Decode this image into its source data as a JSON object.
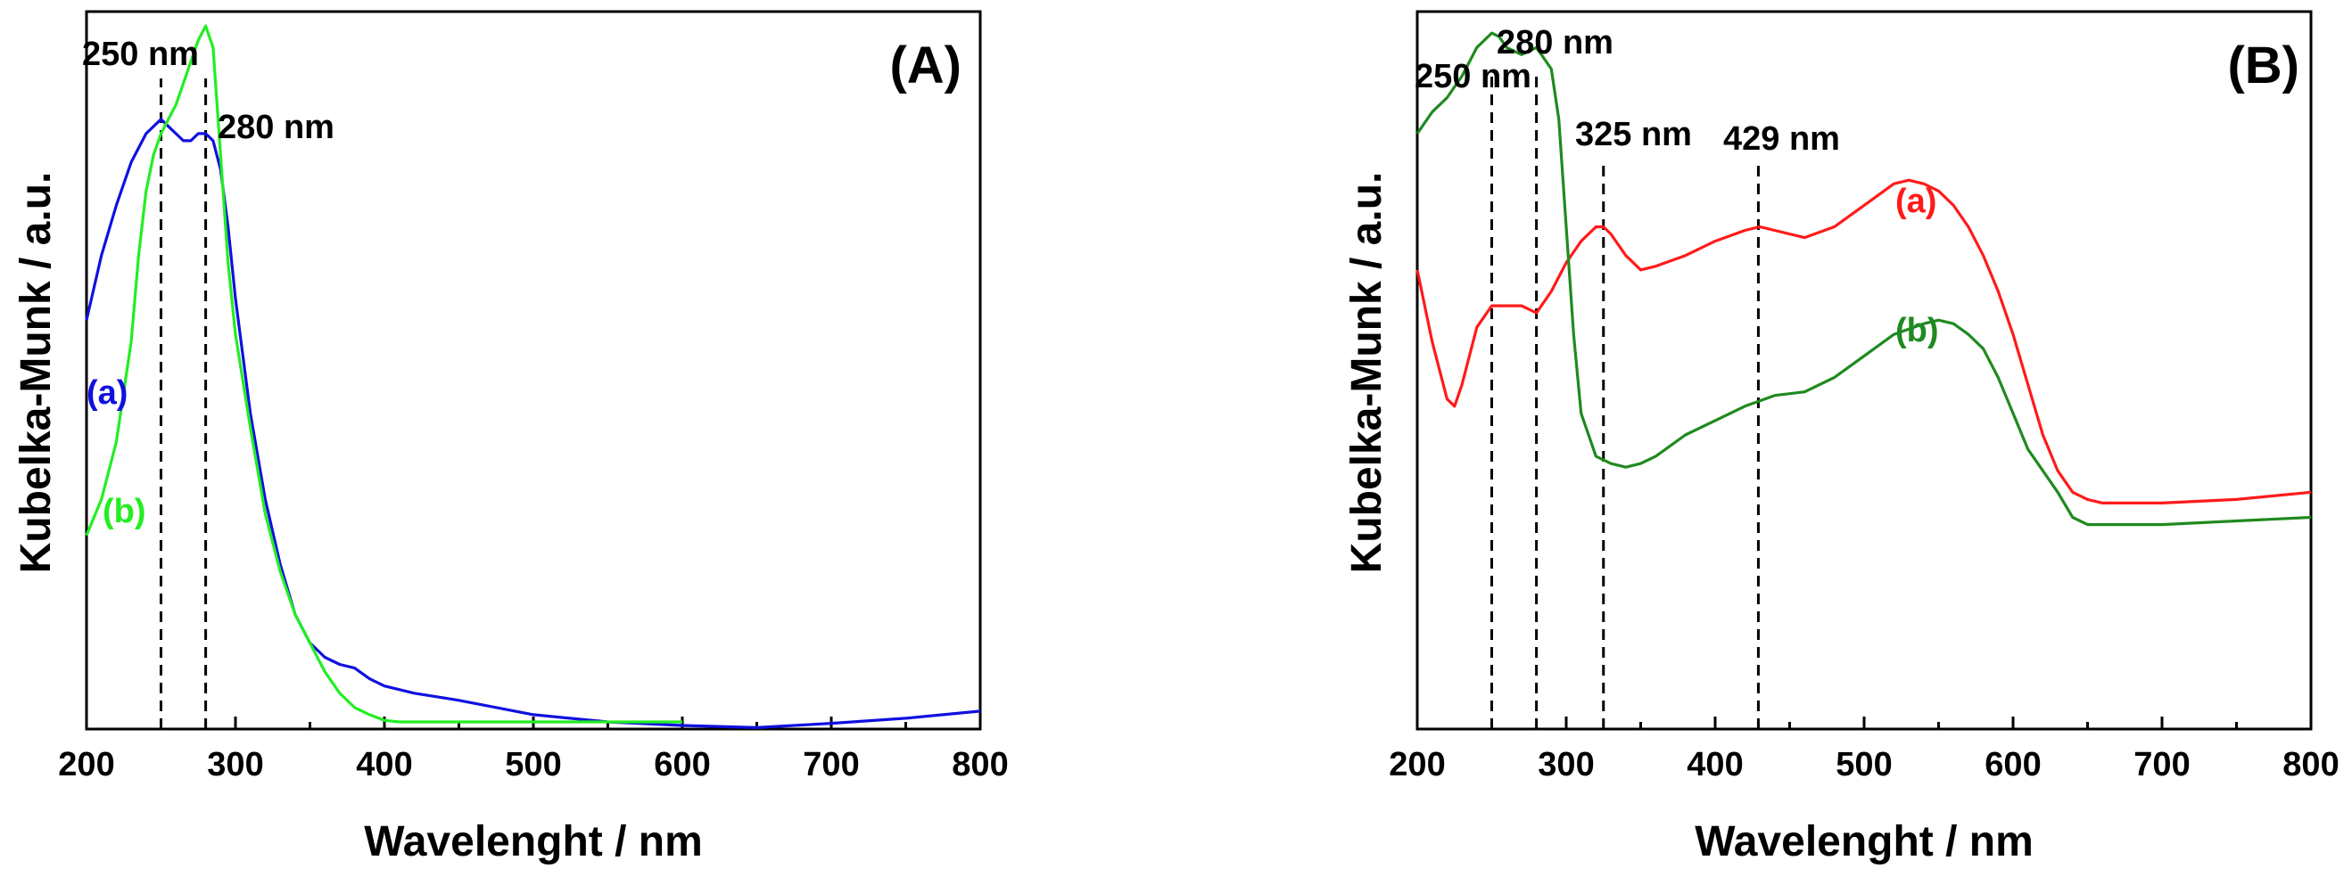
{
  "chart_data": [
    {
      "type": "line",
      "panel_label": "(A)",
      "xlabel": "Wavelenght / nm",
      "ylabel": "Kubelka-Munk / a.u.",
      "xlim": [
        200,
        800
      ],
      "ylim": [
        0,
        1.0
      ],
      "xticks": [
        200,
        300,
        400,
        500,
        600,
        700,
        800
      ],
      "y_tick_labels_shown": false,
      "grid": false,
      "series": [
        {
          "name": "(a)",
          "color": "#1010e0",
          "x": [
            200,
            210,
            220,
            230,
            240,
            250,
            255,
            260,
            265,
            270,
            275,
            280,
            285,
            290,
            295,
            300,
            310,
            320,
            330,
            340,
            350,
            360,
            370,
            380,
            390,
            400,
            420,
            450,
            500,
            550,
            600,
            650,
            700,
            750,
            800
          ],
          "y": [
            0.57,
            0.66,
            0.73,
            0.79,
            0.83,
            0.85,
            0.84,
            0.83,
            0.82,
            0.82,
            0.83,
            0.83,
            0.82,
            0.78,
            0.7,
            0.6,
            0.44,
            0.32,
            0.23,
            0.16,
            0.12,
            0.1,
            0.09,
            0.085,
            0.07,
            0.06,
            0.05,
            0.04,
            0.02,
            0.01,
            0.005,
            0.002,
            0.008,
            0.015,
            0.025
          ]
        },
        {
          "name": "(b)",
          "color": "#22ee22",
          "x": [
            200,
            210,
            220,
            230,
            235,
            240,
            245,
            250,
            255,
            260,
            265,
            270,
            275,
            280,
            285,
            290,
            295,
            300,
            310,
            320,
            330,
            340,
            350,
            360,
            370,
            380,
            390,
            400,
            410,
            450,
            500,
            550,
            600
          ],
          "y": [
            0.27,
            0.32,
            0.4,
            0.54,
            0.66,
            0.75,
            0.8,
            0.83,
            0.85,
            0.87,
            0.9,
            0.93,
            0.96,
            0.98,
            0.95,
            0.8,
            0.65,
            0.55,
            0.42,
            0.3,
            0.22,
            0.16,
            0.12,
            0.08,
            0.05,
            0.03,
            0.02,
            0.012,
            0.01,
            0.01,
            0.01,
            0.01,
            0.01
          ]
        }
      ],
      "vlines": [
        250,
        280
      ],
      "annotations": [
        "250 nm",
        "280 nm"
      ],
      "legend_placement": "inline labels left"
    },
    {
      "type": "line",
      "panel_label": "(B)",
      "xlabel": "Wavelenght / nm",
      "ylabel": "Kubelka-Munk / a.u.",
      "xlim": [
        200,
        800
      ],
      "ylim": [
        0,
        1.0
      ],
      "xticks": [
        200,
        300,
        400,
        500,
        600,
        700,
        800
      ],
      "y_tick_labels_shown": false,
      "grid": false,
      "series": [
        {
          "name": "(a)",
          "color": "#ff1a1a",
          "x": [
            200,
            210,
            220,
            225,
            230,
            240,
            250,
            260,
            270,
            280,
            290,
            300,
            310,
            320,
            325,
            330,
            340,
            350,
            360,
            380,
            400,
            420,
            430,
            440,
            460,
            480,
            500,
            520,
            530,
            540,
            550,
            560,
            570,
            580,
            590,
            600,
            610,
            620,
            630,
            640,
            650,
            660,
            700,
            750,
            800
          ],
          "y": [
            0.64,
            0.54,
            0.46,
            0.45,
            0.48,
            0.56,
            0.59,
            0.59,
            0.59,
            0.58,
            0.61,
            0.65,
            0.68,
            0.7,
            0.7,
            0.69,
            0.66,
            0.64,
            0.645,
            0.66,
            0.68,
            0.695,
            0.7,
            0.695,
            0.685,
            0.7,
            0.73,
            0.76,
            0.765,
            0.76,
            0.75,
            0.73,
            0.7,
            0.66,
            0.61,
            0.55,
            0.48,
            0.41,
            0.36,
            0.33,
            0.32,
            0.315,
            0.315,
            0.32,
            0.33
          ]
        },
        {
          "name": "(b)",
          "color": "#1f8a1f",
          "x": [
            200,
            210,
            220,
            230,
            240,
            250,
            255,
            260,
            270,
            280,
            290,
            295,
            300,
            305,
            310,
            320,
            330,
            340,
            350,
            360,
            380,
            400,
            420,
            440,
            460,
            480,
            500,
            520,
            540,
            550,
            560,
            570,
            580,
            590,
            600,
            610,
            620,
            630,
            640,
            650,
            700,
            750,
            800
          ],
          "y": [
            0.83,
            0.86,
            0.88,
            0.91,
            0.95,
            0.97,
            0.965,
            0.95,
            0.94,
            0.95,
            0.92,
            0.85,
            0.7,
            0.55,
            0.44,
            0.38,
            0.37,
            0.365,
            0.37,
            0.38,
            0.41,
            0.43,
            0.45,
            0.465,
            0.47,
            0.49,
            0.52,
            0.55,
            0.565,
            0.57,
            0.565,
            0.55,
            0.53,
            0.49,
            0.44,
            0.39,
            0.36,
            0.33,
            0.295,
            0.285,
            0.285,
            0.29,
            0.295
          ]
        }
      ],
      "vlines": [
        250,
        280,
        325,
        429
      ],
      "annotations": [
        "250 nm",
        "280 nm",
        "325 nm",
        "429 nm"
      ],
      "legend_placement": "inline labels near curves"
    }
  ]
}
